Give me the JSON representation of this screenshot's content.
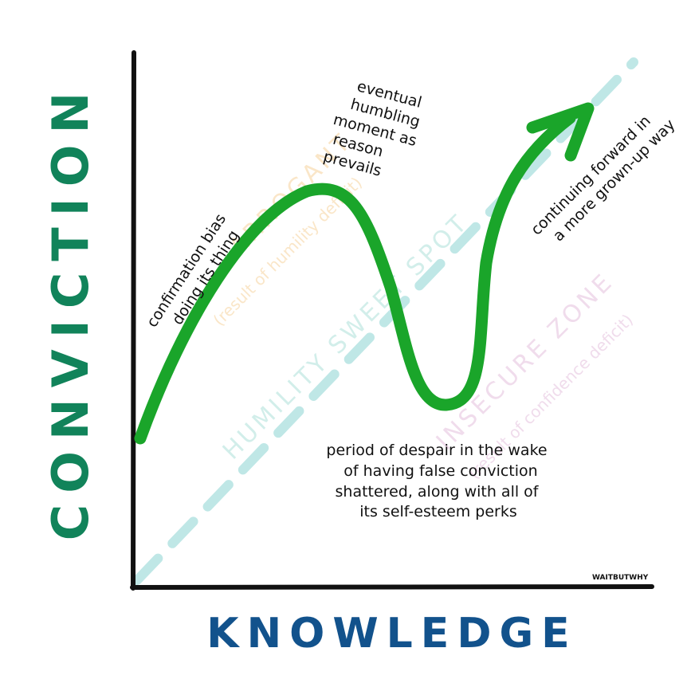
{
  "axes": {
    "y_label": "CONVICTION",
    "x_label": "KNOWLEDGE"
  },
  "zones": {
    "humility": "HUMILITY SWEET SPOT",
    "arrogance_title": "ARROGANT",
    "arrogance_sub": "(result of humility deficit)",
    "insecure_title": "INSECURE ZONE",
    "insecure_sub": "(result of confidence deficit)"
  },
  "annotations": {
    "confirmation_line1": "confirmation bias",
    "confirmation_line2": "doing its thing",
    "humbling_line1": "eventual",
    "humbling_line2": "humbling",
    "humbling_line3": "moment as",
    "humbling_line4": "reason",
    "humbling_line5": "prevails",
    "forward_line1": "continuing forward in",
    "forward_line2": "a more grown-up way",
    "despair_line1": "period of despair in the wake",
    "despair_line2": "of having false conviction",
    "despair_line3": "shattered, along with all of",
    "despair_line4": "its self-esteem perks"
  },
  "credit": "WAITBUTWHY",
  "colors": {
    "curve": "#1aa52a",
    "axis": "#111111",
    "y_label": "#11835a",
    "x_label": "#12528c",
    "diagonal": "#bfe7e6",
    "humility_text": "#d2eeea",
    "arrogance_text": "#fae6c8",
    "insecure_text": "#f0dcec"
  }
}
